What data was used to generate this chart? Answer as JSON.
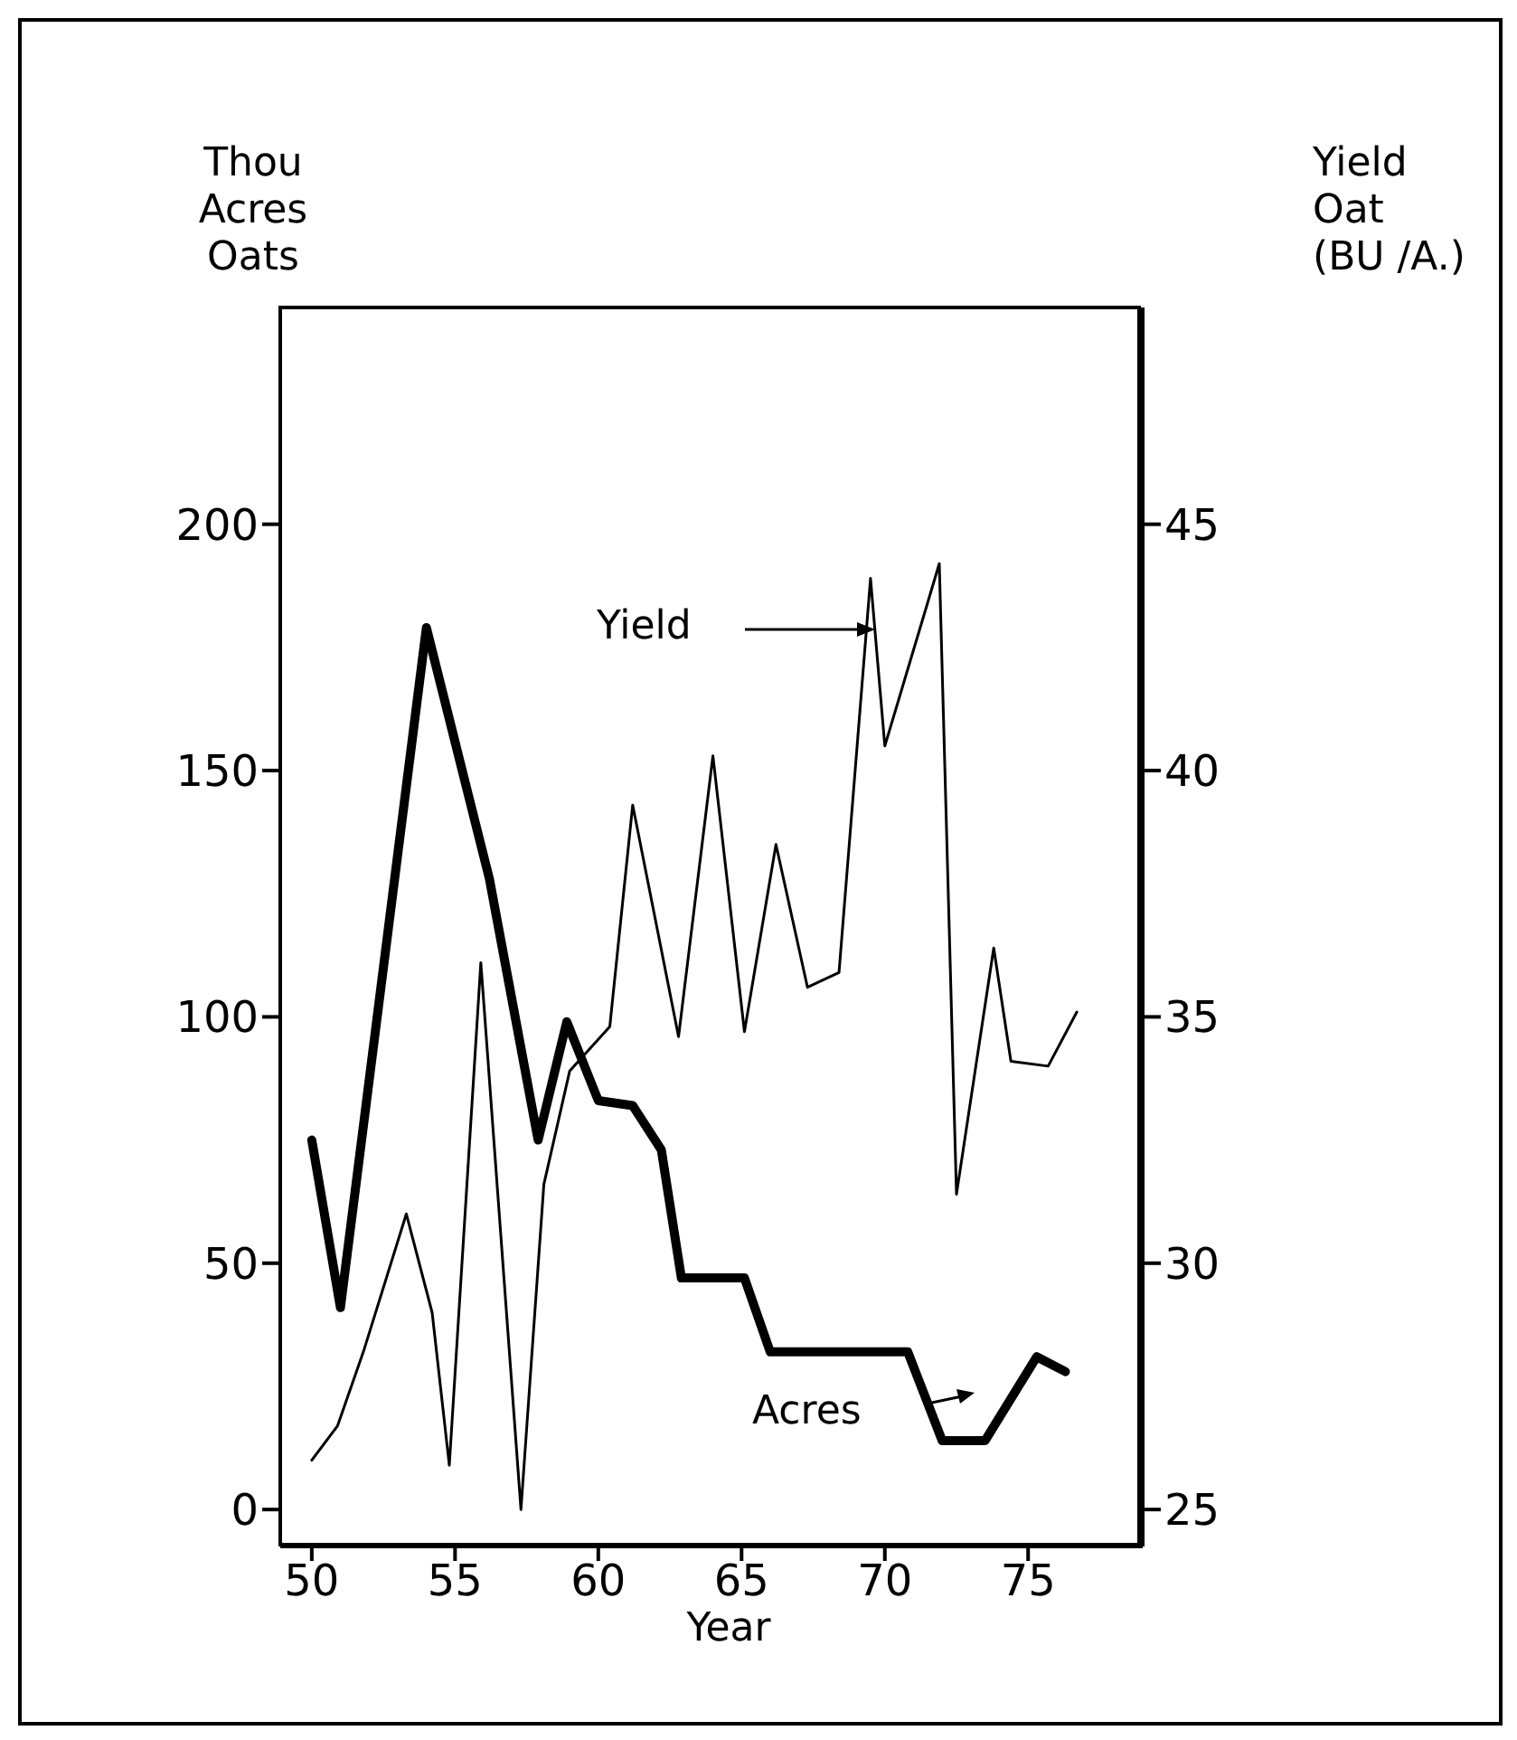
{
  "chart_data": {
    "type": "line",
    "xlabel": "Year",
    "ylabel": "Thou\nAcres\nOats",
    "y2label": "Yield\nOat\n(BU /A.)",
    "xlim": [
      48.9,
      79
    ],
    "xticks": [
      50,
      55,
      60,
      65,
      70,
      75
    ],
    "ylim": [
      -7.5,
      244
    ],
    "yticks": [
      0,
      50,
      100,
      150,
      200
    ],
    "y2lim": [
      24.25,
      49.4
    ],
    "y2ticks": [
      25,
      30,
      35,
      40,
      45
    ],
    "grid": false,
    "legend": "center",
    "marker": "none",
    "line_style": "solid",
    "series": [
      {
        "name": "Acres",
        "color": "#000000",
        "x": [
          50,
          51,
          54,
          56.2,
          57.9,
          58.9,
          60,
          61.2,
          62.2,
          62.9,
          65.1,
          66,
          70.8,
          72,
          73.5,
          75.3,
          76.3
        ],
        "values": [
          75,
          41,
          179,
          128,
          75,
          99,
          83,
          82,
          73,
          47,
          47,
          32,
          32,
          14,
          14,
          31,
          28
        ]
      },
      {
        "name": "Yield",
        "color": "#000000",
        "axis": "y2",
        "x": [
          50,
          50.9,
          51.8,
          53.3,
          54.2,
          54.8,
          55.9,
          57.3,
          58.1,
          59,
          60.4,
          61.2,
          62.8,
          64,
          65.1,
          66.2,
          67.3,
          68.4,
          69.5,
          70,
          71.9,
          72.5,
          73.8,
          74.4,
          75.7,
          76.7
        ],
        "values": [
          26,
          26.7,
          28.2,
          31,
          29,
          25.9,
          36.1,
          25,
          31.6,
          33.9,
          34.8,
          39.3,
          34.6,
          40.3,
          34.7,
          38.5,
          35.6,
          35.9,
          43.9,
          40.5,
          44.2,
          31.4,
          36.4,
          34.1,
          34,
          35.1
        ]
      }
    ]
  }
}
